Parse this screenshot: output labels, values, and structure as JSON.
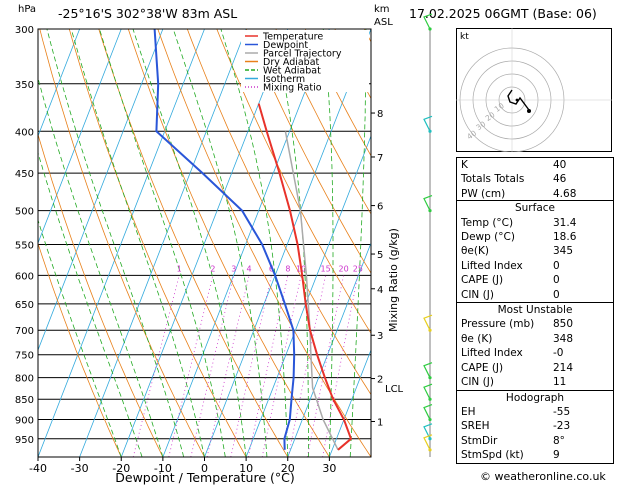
{
  "header": {
    "location": "-25°16'S  302°38'W  83m  ASL",
    "datetime": "17.02.2025  06GMT  (Base: 06)"
  },
  "chart_data": {
    "type": "skew-t",
    "pressure_unit": "hPa",
    "height_unit": "km",
    "height_unit_sub": "ASL",
    "xlabel": "Dewpoint / Temperature (°C)",
    "mixing_ratio_label": "Mixing Ratio (g/kg)",
    "x_ticks": [
      "-40",
      "-30",
      "-20",
      "-10",
      "0",
      "10",
      "20",
      "30"
    ],
    "xlim": [
      -40,
      40
    ],
    "pressure_levels": [
      300,
      350,
      400,
      450,
      500,
      550,
      600,
      650,
      700,
      750,
      800,
      850,
      900,
      950
    ],
    "height_labels": [
      {
        "p": 380,
        "km": "8"
      },
      {
        "p": 430,
        "km": "7"
      },
      {
        "p": 493,
        "km": "6"
      },
      {
        "p": 565,
        "km": "5"
      },
      {
        "p": 623,
        "km": "4"
      },
      {
        "p": 710,
        "km": "3"
      },
      {
        "p": 802,
        "km": "2"
      },
      {
        "p": 905,
        "km": "1"
      }
    ],
    "lcl_label": "LCL",
    "lcl_p": 823,
    "mixing_ratio_values": [
      "1",
      "2",
      "3",
      "4",
      "6",
      "8",
      "10",
      "15",
      "20",
      "25"
    ],
    "legend": [
      "Temperature",
      "Dewpoint",
      "Parcel Trajectory",
      "Dry Adiabat",
      "Wet Adiabat",
      "Isotherm",
      "Mixing Ratio"
    ],
    "temperature": [
      [
        980,
        31.4
      ],
      [
        950,
        33.5
      ],
      [
        900,
        30
      ],
      [
        850,
        25.5
      ],
      [
        800,
        21.5
      ],
      [
        750,
        17.5
      ],
      [
        700,
        13.5
      ],
      [
        650,
        10
      ],
      [
        600,
        6.5
      ],
      [
        550,
        2.5
      ],
      [
        500,
        -2.5
      ],
      [
        450,
        -8.5
      ],
      [
        400,
        -15.5
      ],
      [
        370,
        -20
      ]
    ],
    "dewpoint": [
      [
        980,
        18.6
      ],
      [
        950,
        17.5
      ],
      [
        900,
        17
      ],
      [
        850,
        15.5
      ],
      [
        800,
        14
      ],
      [
        750,
        12
      ],
      [
        700,
        9.5
      ],
      [
        650,
        5
      ],
      [
        600,
        0
      ],
      [
        550,
        -6
      ],
      [
        500,
        -14
      ],
      [
        450,
        -27
      ],
      [
        400,
        -42
      ],
      [
        350,
        -46
      ],
      [
        300,
        -52
      ]
    ],
    "parcel": [
      [
        980,
        31.4
      ],
      [
        900,
        25
      ],
      [
        823,
        19.5
      ],
      [
        750,
        16
      ],
      [
        700,
        13.5
      ],
      [
        600,
        7.5
      ],
      [
        500,
        0
      ],
      [
        400,
        -11
      ]
    ],
    "colors": {
      "temperature": "#e8322a",
      "dewpoint": "#2a56d8",
      "parcel": "#aaaaaa",
      "dry_adiabat": "#e8801a",
      "wet_adiabat": "#22aa22",
      "isotherm": "#33aadd",
      "mixing_ratio": "#cc33cc"
    }
  },
  "wind_barbs": [
    {
      "p": 300,
      "color": "#2ecc40"
    },
    {
      "p": 400,
      "color": "#20c0c0"
    },
    {
      "p": 500,
      "color": "#2ecc40"
    },
    {
      "p": 700,
      "color": "#e8d020"
    },
    {
      "p": 800,
      "color": "#2ecc40"
    },
    {
      "p": 850,
      "color": "#2ecc40"
    },
    {
      "p": 900,
      "color": "#2ecc40"
    },
    {
      "p": 950,
      "color": "#20c0c0"
    },
    {
      "p": 980,
      "color": "#e8d020"
    }
  ],
  "hodograph": {
    "unit": "kt",
    "ring_labels": [
      "10",
      "20",
      "30",
      "40"
    ]
  },
  "indices": {
    "k_label": "K",
    "k": "40",
    "tt_label": "Totals Totals",
    "tt": "46",
    "pw_label": "PW (cm)",
    "pw": "4.68"
  },
  "surface": {
    "title": "Surface",
    "rows": [
      {
        "label": "Temp (°C)",
        "value": "31.4"
      },
      {
        "label": "Dewp (°C)",
        "value": "18.6"
      },
      {
        "label": "θe(K)",
        "value": "345"
      },
      {
        "label": "Lifted Index",
        "value": "0"
      },
      {
        "label": "CAPE (J)",
        "value": "0"
      },
      {
        "label": "CIN (J)",
        "value": "0"
      }
    ]
  },
  "most_unstable": {
    "title": "Most Unstable",
    "rows": [
      {
        "label": "Pressure (mb)",
        "value": "850"
      },
      {
        "label": "θe (K)",
        "value": "348"
      },
      {
        "label": "Lifted Index",
        "value": "-0"
      },
      {
        "label": "CAPE (J)",
        "value": "214"
      },
      {
        "label": "CIN (J)",
        "value": "11"
      }
    ]
  },
  "hodograph_table": {
    "title": "Hodograph",
    "rows": [
      {
        "label": "EH",
        "value": "-55"
      },
      {
        "label": "SREH",
        "value": "-23"
      },
      {
        "label": "StmDir",
        "value": "8°"
      },
      {
        "label": "StmSpd (kt)",
        "value": "9"
      }
    ]
  },
  "footer": "© weatheronline.co.uk"
}
